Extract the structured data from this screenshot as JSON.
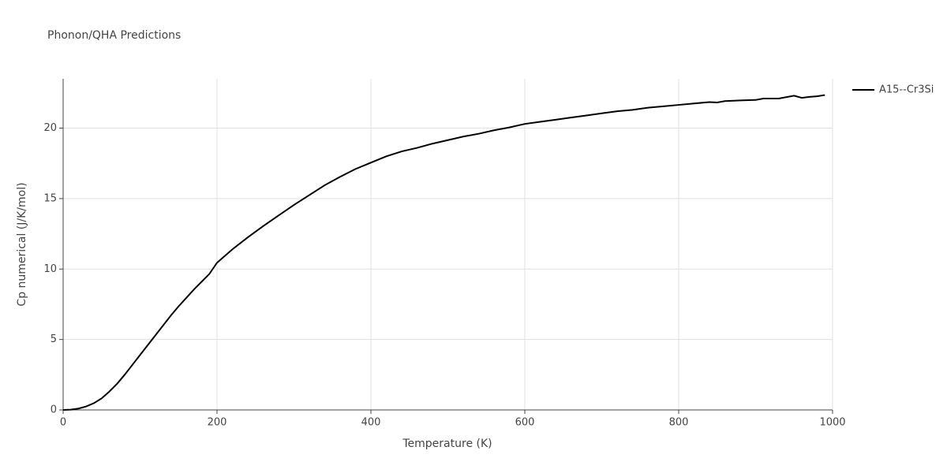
{
  "chart_data": {
    "type": "line",
    "title": "Phonon/QHA Predictions",
    "xlabel": "Temperature (K)",
    "ylabel": "Cp numerical (J/K/mol)",
    "x": [
      0,
      10,
      20,
      30,
      40,
      50,
      60,
      70,
      80,
      90,
      100,
      110,
      120,
      130,
      140,
      150,
      160,
      170,
      180,
      190,
      200,
      220,
      240,
      260,
      280,
      300,
      320,
      340,
      360,
      380,
      400,
      420,
      440,
      460,
      480,
      500,
      520,
      540,
      560,
      580,
      600,
      620,
      640,
      660,
      680,
      700,
      720,
      740,
      760,
      780,
      800,
      820,
      840,
      850,
      860,
      880,
      900,
      910,
      930,
      950,
      960,
      970,
      980,
      990
    ],
    "series": [
      {
        "name": "A15--Cr3Si",
        "color": "#000000",
        "values": [
          0,
          0.02,
          0.1,
          0.25,
          0.48,
          0.82,
          1.3,
          1.85,
          2.5,
          3.2,
          3.9,
          4.6,
          5.3,
          6.0,
          6.7,
          7.35,
          7.95,
          8.55,
          9.1,
          9.65,
          10.45,
          11.4,
          12.25,
          13.05,
          13.8,
          14.55,
          15.25,
          15.95,
          16.55,
          17.1,
          17.55,
          18.0,
          18.35,
          18.6,
          18.9,
          19.15,
          19.4,
          19.6,
          19.85,
          20.05,
          20.3,
          20.45,
          20.6,
          20.75,
          20.9,
          21.05,
          21.2,
          21.3,
          21.45,
          21.55,
          21.65,
          21.75,
          21.85,
          21.82,
          21.92,
          21.97,
          22.0,
          22.1,
          22.1,
          22.3,
          22.15,
          22.22,
          22.26,
          22.35
        ]
      }
    ],
    "xlim": [
      0,
      1000
    ],
    "xticks": [
      0,
      200,
      400,
      600,
      800,
      1000
    ],
    "ylim": [
      0,
      23.5
    ],
    "yticks": [
      0,
      5,
      10,
      15,
      20
    ],
    "grid": true,
    "legend": "right"
  }
}
